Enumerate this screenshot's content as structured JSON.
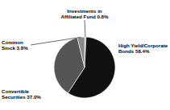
{
  "chart_data": {
    "type": "pie",
    "categories": [
      "Investments in\nAffiliated Fund 0.8%",
      "High Yield/Corporate\nBonds 58.4%",
      "Convertible\nSecurities 37.0%",
      "Common\nStock 3.8%"
    ],
    "values": [
      0.8,
      58.4,
      37.0,
      3.8
    ],
    "colors": [
      "#b0b0b0",
      "#111111",
      "#555555",
      "#888888"
    ]
  }
}
